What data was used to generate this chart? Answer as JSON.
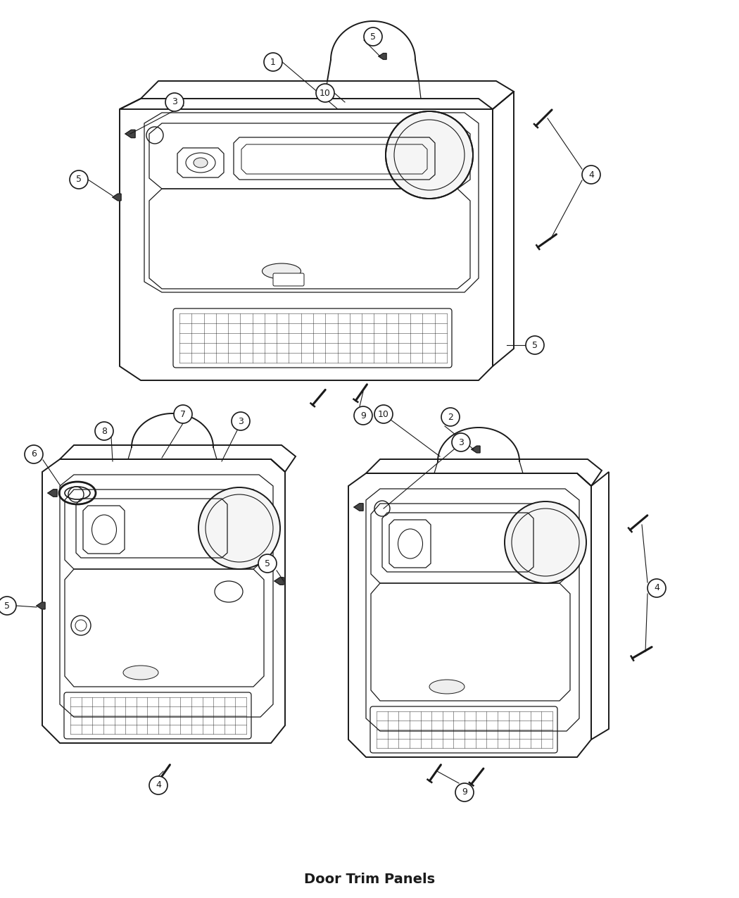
{
  "title": "Door Trim Panels",
  "bg_color": "#ffffff",
  "line_color": "#1a1a1a",
  "fig_width": 10.5,
  "fig_height": 12.75,
  "dpi": 100
}
